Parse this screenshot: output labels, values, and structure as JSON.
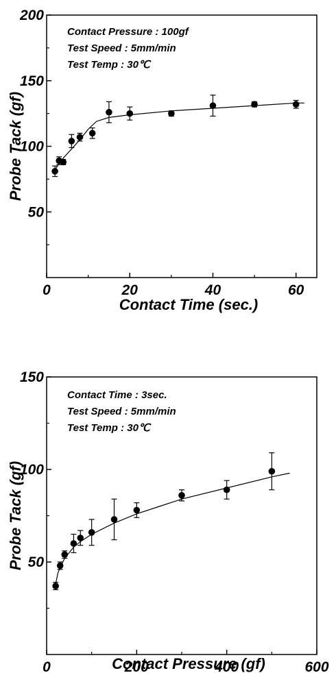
{
  "chart_data": [
    {
      "type": "scatter",
      "title": "",
      "xlabel": "Contact Time (sec.)",
      "ylabel": "Probe Tack (gf)",
      "xlim": [
        0,
        65
      ],
      "ylim": [
        0,
        200
      ],
      "xticks": [
        "0",
        "20",
        "40",
        "60"
      ],
      "yticks": [
        "50",
        "100",
        "150",
        "200"
      ],
      "annotations": [
        "Contact Pressure : 100gf",
        "Test Speed : 5mm/min",
        "Test Temp : 30℃"
      ],
      "series": [
        {
          "x": [
            2,
            3,
            4,
            6,
            8,
            11,
            15,
            20,
            30,
            40,
            50,
            60
          ],
          "y": [
            81,
            89,
            88,
            104,
            107,
            110,
            126,
            125,
            125,
            131,
            132,
            132
          ],
          "err": [
            4,
            3,
            2,
            5,
            3,
            4,
            8,
            5,
            2,
            8,
            2,
            3
          ]
        }
      ],
      "fit_curve": {
        "x": [
          2,
          3,
          4,
          6,
          8,
          10,
          12,
          15,
          20,
          30,
          40,
          50,
          60,
          62
        ],
        "y": [
          82,
          87,
          91,
          98,
          105,
          113,
          119,
          122,
          124,
          127,
          129,
          131,
          133,
          133
        ]
      },
      "grid": false
    },
    {
      "type": "scatter",
      "title": "",
      "xlabel": "Contact Pressure (gf)",
      "ylabel": "Probe Tack (gf)",
      "xlim": [
        0,
        600
      ],
      "ylim": [
        0,
        150
      ],
      "xticks": [
        "0",
        "200",
        "400",
        "600"
      ],
      "yticks": [
        "50",
        "100",
        "150"
      ],
      "annotations": [
        "Contact Time : 3sec.",
        "Test Speed : 5mm/min",
        "Test Temp : 30℃"
      ],
      "series": [
        {
          "x": [
            20,
            30,
            40,
            60,
            75,
            100,
            150,
            200,
            300,
            400,
            500
          ],
          "y": [
            37,
            48,
            54,
            60,
            63,
            66,
            73,
            78,
            86,
            89,
            99
          ],
          "err": [
            2,
            2,
            2,
            5,
            4,
            7,
            11,
            4,
            3,
            5,
            10
          ]
        }
      ],
      "fit_curve": {
        "x": [
          20,
          25,
          30,
          40,
          50,
          60,
          75,
          100,
          150,
          200,
          250,
          300,
          400,
          500,
          540
        ],
        "y": [
          38,
          44,
          47,
          52,
          55,
          58,
          61,
          65,
          71,
          76,
          80,
          84,
          90,
          96,
          98
        ]
      },
      "grid": false
    }
  ]
}
